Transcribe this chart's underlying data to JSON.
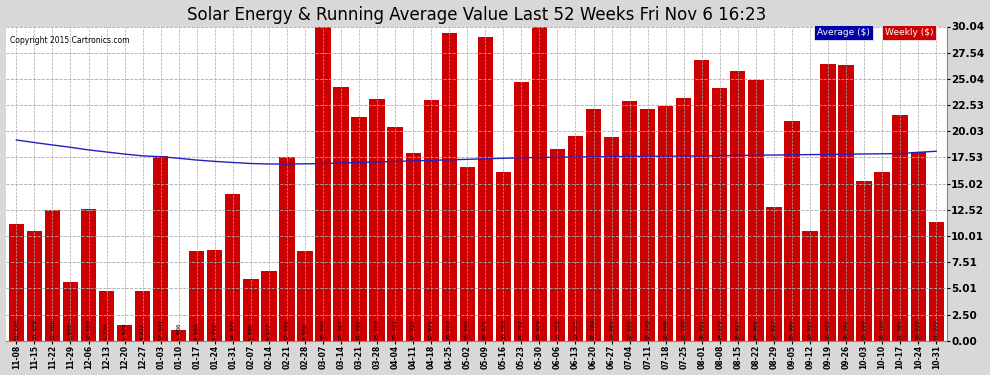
{
  "title": "Solar Energy & Running Average Value Last 52 Weeks Fri Nov 6 16:23",
  "copyright": "Copyright 2015 Cartronics.com",
  "bar_color": "#cc0000",
  "avg_line_color": "#2222bb",
  "background_color": "#d8d8d8",
  "plot_bg_color": "#ffffff",
  "grid_color": "#aaaaaa",
  "ylim": [
    0.0,
    30.04
  ],
  "yticks": [
    0.0,
    2.5,
    5.01,
    7.51,
    10.01,
    12.52,
    15.02,
    17.53,
    20.03,
    22.53,
    25.04,
    27.54,
    30.04
  ],
  "categories": [
    "11-08",
    "11-15",
    "11-22",
    "11-29",
    "12-06",
    "12-13",
    "12-20",
    "12-27",
    "01-03",
    "01-10",
    "01-17",
    "01-24",
    "01-31",
    "02-07",
    "02-14",
    "02-21",
    "02-28",
    "03-07",
    "03-14",
    "03-21",
    "03-28",
    "04-04",
    "04-11",
    "04-18",
    "04-25",
    "05-02",
    "05-09",
    "05-16",
    "05-23",
    "05-30",
    "06-06",
    "06-13",
    "06-20",
    "06-27",
    "07-04",
    "07-11",
    "07-18",
    "07-25",
    "08-01",
    "08-08",
    "08-15",
    "08-22",
    "08-29",
    "09-05",
    "09-12",
    "09-19",
    "09-26",
    "10-03",
    "10-10",
    "10-17",
    "10-24",
    "10-31"
  ],
  "weekly_values": [
    11.146,
    10.479,
    12.486,
    5.655,
    12.559,
    4.734,
    1.529,
    4.812,
    17.641,
    1.006,
    8.554,
    8.712,
    14.07,
    5.886,
    6.677,
    17.598,
    8.556,
    30.043,
    24.307,
    21.386,
    23.15,
    20.431,
    17.932,
    22.971,
    29.45,
    16.599,
    29.075,
    16.099,
    24.752,
    29.979,
    18.318,
    19.575,
    22.184,
    19.5,
    22.89,
    22.143,
    22.446,
    23.19,
    26.821,
    24.178,
    25.817,
    24.956,
    12.817,
    20.995,
    10.515,
    26.422,
    26.392,
    15.299,
    16.1,
    21.585,
    18.02,
    11.377
  ],
  "avg_values": [
    19.2,
    18.95,
    18.72,
    18.5,
    18.25,
    18.05,
    17.85,
    17.68,
    17.6,
    17.45,
    17.28,
    17.15,
    17.05,
    16.95,
    16.9,
    16.9,
    16.92,
    16.95,
    17.0,
    17.05,
    17.1,
    17.15,
    17.2,
    17.25,
    17.3,
    17.35,
    17.4,
    17.45,
    17.5,
    17.53,
    17.55,
    17.57,
    17.59,
    17.61,
    17.62,
    17.64,
    17.65,
    17.66,
    17.68,
    17.7,
    17.72,
    17.74,
    17.76,
    17.78,
    17.8,
    17.82,
    17.84,
    17.86,
    17.88,
    17.9,
    18.02,
    18.12
  ],
  "legend_avg_bg": "#0000aa",
  "legend_avg_label": "Average ($)",
  "legend_weekly_bg": "#cc0000",
  "legend_weekly_label": "Weekly ($)",
  "title_fontsize": 12,
  "tick_fontsize": 5.5,
  "value_fontsize": 4.2,
  "ytick_fontsize": 7.5
}
